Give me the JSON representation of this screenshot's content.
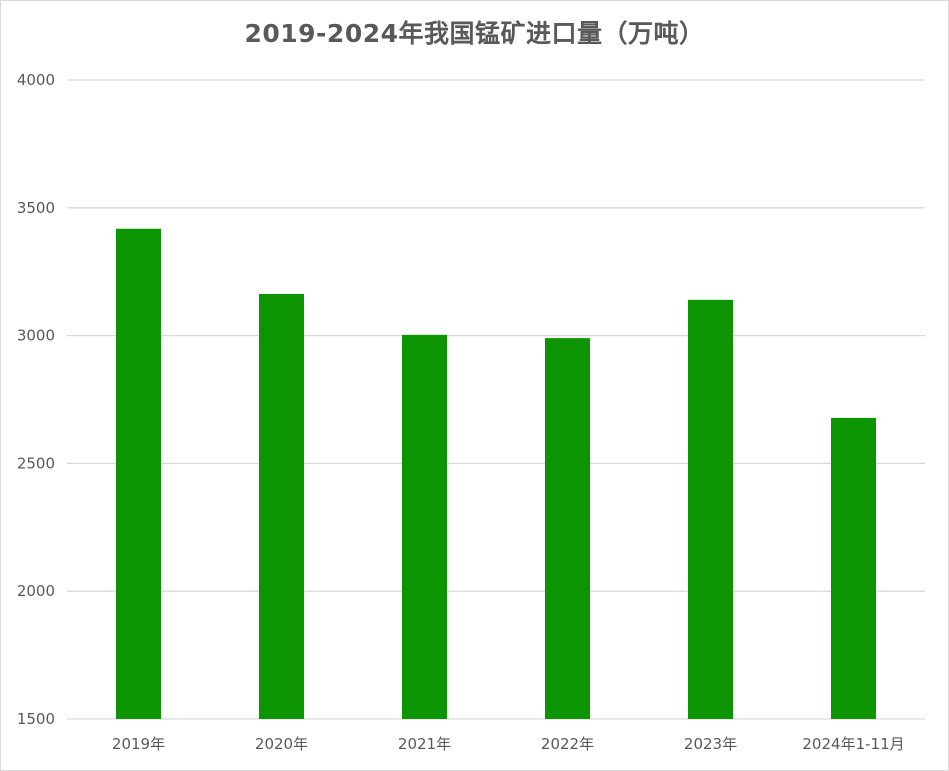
{
  "chart_data": {
    "type": "bar",
    "title": "2019-2024年我国锰矿进口量（万吨）",
    "xlabel": "",
    "ylabel": "",
    "categories": [
      "2019年",
      "2020年",
      "2021年",
      "2022年",
      "2023年",
      "2024年1-11月"
    ],
    "values": [
      3418,
      3163,
      3003,
      2990,
      3140,
      2678
    ],
    "ylim": [
      1500,
      4000
    ],
    "yticks": [
      1500,
      2000,
      2500,
      3000,
      3500,
      4000
    ],
    "grid": true,
    "legend": "none",
    "bar_color": "#0c9402"
  }
}
